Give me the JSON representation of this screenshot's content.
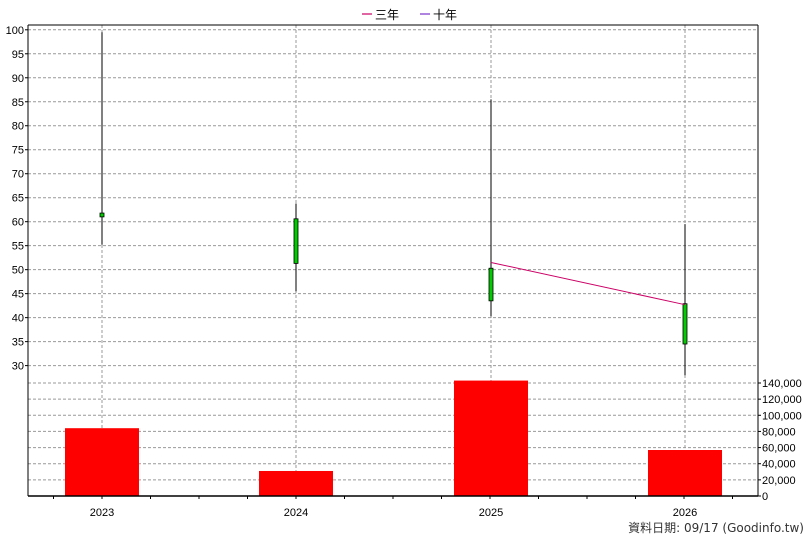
{
  "legend": [
    {
      "label": "三年",
      "color": "#cc0066"
    },
    {
      "label": "十年",
      "color": "#7733cc"
    }
  ],
  "footer": "資料日期: 09/17  (Goodinfo.tw)",
  "chart_data": {
    "type": "candlestick+bar",
    "categories": [
      "2023",
      "2024",
      "2025",
      "2026"
    ],
    "price_axis": {
      "min": 27,
      "max": 101,
      "ticks": [
        30,
        35,
        40,
        45,
        50,
        55,
        60,
        65,
        70,
        75,
        80,
        85,
        90,
        95,
        100
      ]
    },
    "volume_axis": {
      "min": 0,
      "max": 140000,
      "ticks": [
        0,
        20000,
        40000,
        60000,
        80000,
        100000,
        120000,
        140000
      ],
      "tick_labels": [
        "0",
        "20,000",
        "40,000",
        "60,000",
        "80,000",
        "100,000",
        "120,000",
        "140,000"
      ]
    },
    "candles": [
      {
        "year": "2023",
        "open": 61.0,
        "close": 61.8,
        "high": 99.5,
        "low": 55.2
      },
      {
        "year": "2024",
        "open": 51.3,
        "close": 60.6,
        "high": 63.8,
        "low": 45.5
      },
      {
        "year": "2025",
        "open": 43.5,
        "close": 50.3,
        "high": 85.5,
        "low": 40.3
      },
      {
        "year": "2026",
        "open": 34.5,
        "close": 42.9,
        "high": 59.5,
        "low": 28.0
      }
    ],
    "volume": [
      {
        "year": "2023",
        "value": 84000
      },
      {
        "year": "2024",
        "value": 31000
      },
      {
        "year": "2025",
        "value": 143000
      },
      {
        "year": "2026",
        "value": 57000
      }
    ],
    "series": [
      {
        "name": "三年",
        "color": "#cc0066",
        "points": [
          {
            "year": "2025",
            "value": 51.5
          },
          {
            "year": "2026",
            "value": 42.7
          }
        ]
      }
    ],
    "grid": true
  }
}
